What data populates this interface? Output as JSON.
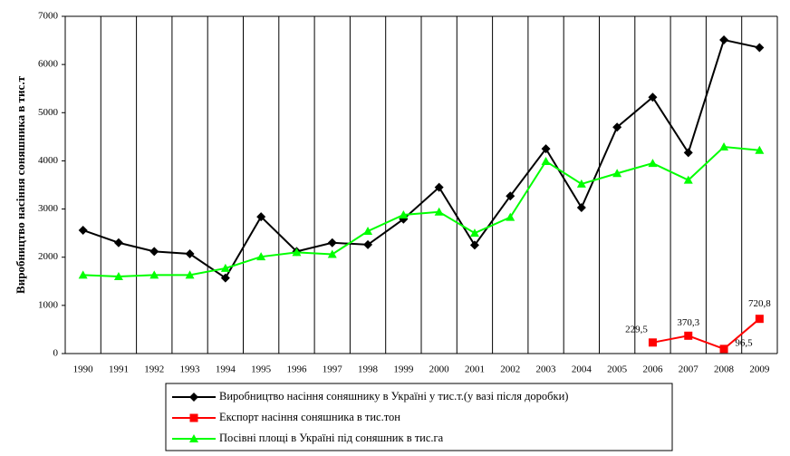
{
  "chart_data": {
    "type": "line",
    "y_label": "Виробництво насіння соняшника в тис.т",
    "categories": [
      "1990",
      "1991",
      "1992",
      "1993",
      "1994",
      "1995",
      "1996",
      "1997",
      "1998",
      "1999",
      "2000",
      "2001",
      "2002",
      "2003",
      "2004",
      "2005",
      "2006",
      "2007",
      "2008",
      "2009"
    ],
    "ylim": [
      0,
      7000
    ],
    "yticks": [
      0,
      1000,
      2000,
      3000,
      4000,
      5000,
      6000,
      7000
    ],
    "series": [
      {
        "name": "Виробництво насіння соняшнику в Україні у тис.т.(у вазі після доробки)",
        "color": "#000000",
        "marker": "diamond",
        "values": [
          2560,
          2300,
          2120,
          2070,
          1570,
          2840,
          2120,
          2300,
          2260,
          2790,
          3450,
          2250,
          3270,
          4250,
          3030,
          4700,
          5320,
          4170,
          6510,
          6350
        ]
      },
      {
        "name": "Експорт насіння соняшника в тис.тон",
        "color": "#ff0000",
        "marker": "square",
        "values": [
          null,
          null,
          null,
          null,
          null,
          null,
          null,
          null,
          null,
          null,
          null,
          null,
          null,
          null,
          null,
          null,
          229.5,
          370.3,
          96.5,
          720.8
        ],
        "value_labels": [
          null,
          null,
          null,
          null,
          null,
          null,
          null,
          null,
          null,
          null,
          null,
          null,
          null,
          null,
          null,
          null,
          "229,5",
          "370,3",
          "96,5",
          "720,8"
        ]
      },
      {
        "name": "Посівні площі в Україні під соняшник в тис.га",
        "color": "#00ff00",
        "marker": "triangle",
        "values": [
          1630,
          1600,
          1630,
          1630,
          1770,
          2010,
          2100,
          2060,
          2540,
          2880,
          2940,
          2500,
          2830,
          3990,
          3520,
          3740,
          3950,
          3600,
          4290,
          4220
        ]
      }
    ]
  }
}
